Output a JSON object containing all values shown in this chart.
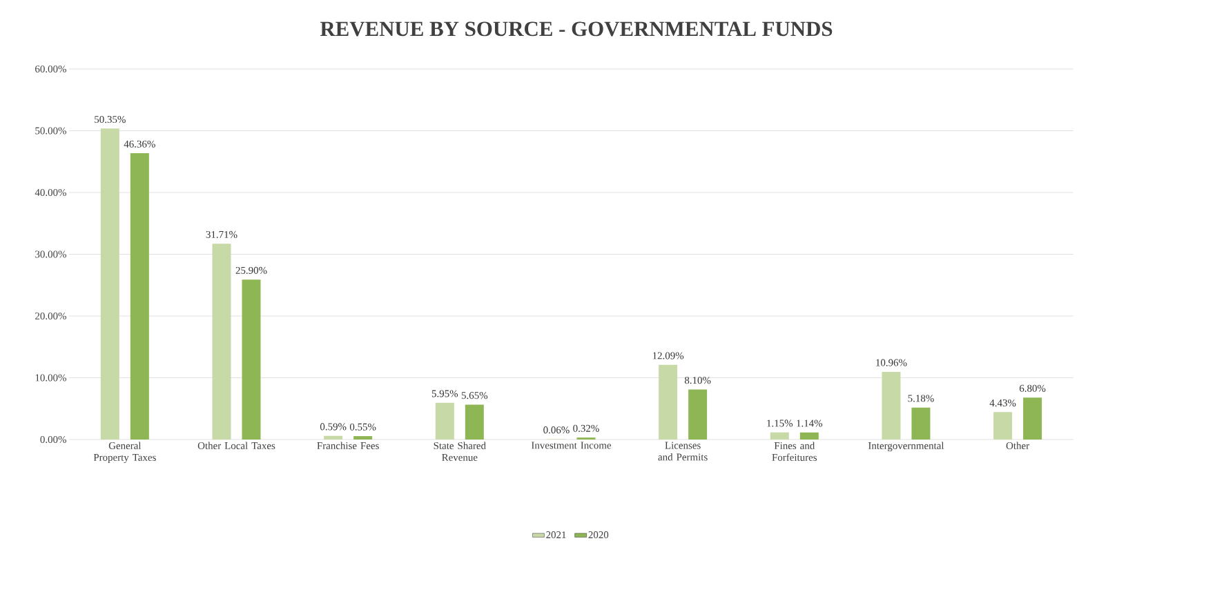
{
  "chart_data": {
    "type": "bar",
    "title": "REVENUE BY SOURCE - GOVERNMENTAL FUNDS",
    "categories": [
      "General Property Taxes",
      "Other Local Taxes",
      "Franchise Fees",
      "State Shared Revenue",
      "Investment Income",
      "Licenses and Permits",
      "Fines and Forfeitures",
      "Intergovernmental",
      "Other"
    ],
    "series": [
      {
        "name": "2021",
        "color": "#c6d9a6",
        "values": [
          50.35,
          31.71,
          0.59,
          5.95,
          0.06,
          12.09,
          1.15,
          10.96,
          4.43
        ],
        "value_labels": [
          "50.35%",
          "31.71%",
          "0.59%",
          "5.95%",
          "0.06%",
          "12.09%",
          "1.15%",
          "10.96%",
          "4.43%"
        ]
      },
      {
        "name": "2020",
        "color": "#8fb654",
        "values": [
          46.36,
          25.9,
          0.55,
          5.65,
          0.32,
          8.1,
          1.14,
          5.18,
          6.8
        ],
        "value_labels": [
          "46.36%",
          "25.90%",
          "0.55%",
          "5.65%",
          "0.32%",
          "8.10%",
          "1.14%",
          "5.18%",
          "6.80%"
        ]
      }
    ],
    "ylim": [
      0,
      60
    ],
    "yticks": [
      {
        "value": 0,
        "label": "0.00%"
      },
      {
        "value": 10,
        "label": "10.00%"
      },
      {
        "value": 20,
        "label": "20.00%"
      },
      {
        "value": 30,
        "label": "30.00%"
      },
      {
        "value": 40,
        "label": "40.00%"
      },
      {
        "value": 50,
        "label": "50.00%"
      },
      {
        "value": 60,
        "label": "60.00%"
      }
    ],
    "grid": "y",
    "legend": "bottom"
  }
}
